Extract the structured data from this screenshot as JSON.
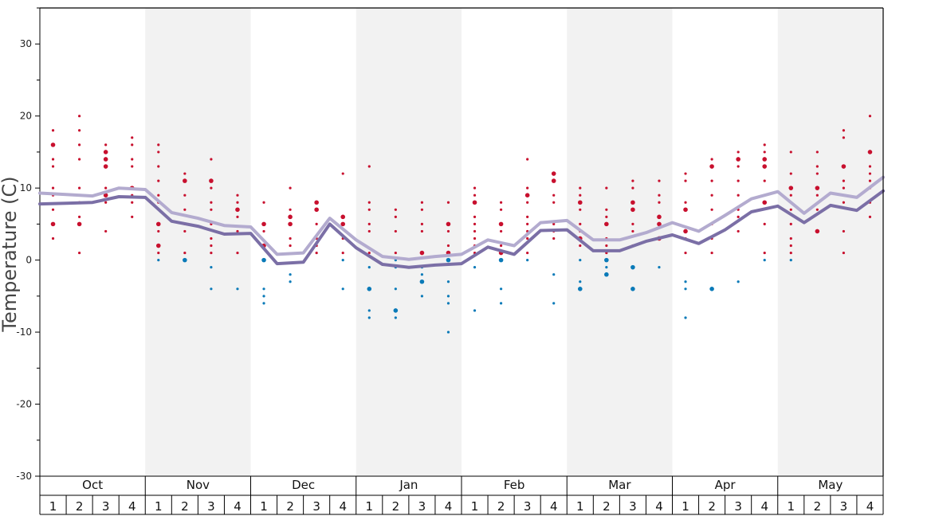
{
  "chart_data": {
    "type": "scatter",
    "title": "",
    "xlabel": "",
    "ylabel": "Temperature (C)",
    "ylim": [
      -30,
      35
    ],
    "y_ticks": [
      30,
      20,
      10,
      0,
      -10,
      -20,
      -30
    ],
    "y_tick_labels": [
      "30",
      "20",
      "10",
      "0",
      "-10",
      "-20",
      "-30"
    ],
    "grid": false,
    "months": [
      "Oct",
      "Nov",
      "Dec",
      "Jan",
      "Feb",
      "Mar",
      "Apr",
      "May"
    ],
    "weeks": [
      "1",
      "2",
      "3",
      "4"
    ],
    "colors": {
      "warm_point": "#c8102e",
      "cold_point": "#0a7ab8",
      "min_line": "#7b6fa6",
      "max_line": "#b3abcf",
      "band": "#f2f2f2"
    },
    "series": [
      {
        "role": "max_line",
        "values": [
          9.3,
          9.1,
          8.9,
          10.0,
          9.8,
          6.6,
          5.8,
          4.8,
          4.6,
          0.8,
          1.0,
          5.8,
          2.8,
          0.5,
          0.1,
          0.5,
          0.8,
          2.8,
          2.0,
          5.2,
          5.5,
          2.8,
          2.8,
          3.8,
          5.2,
          4.0,
          6.2,
          8.5,
          9.5,
          6.5,
          9.3,
          8.7,
          11.5
        ]
      },
      {
        "role": "min_line",
        "values": [
          7.8,
          7.9,
          8.0,
          8.8,
          8.7,
          5.4,
          4.7,
          3.6,
          3.7,
          -0.5,
          -0.3,
          5.0,
          1.7,
          -0.6,
          -1.0,
          -0.7,
          -0.5,
          1.8,
          0.8,
          4.1,
          4.2,
          1.3,
          1.3,
          2.6,
          3.5,
          2.3,
          4.2,
          6.7,
          7.5,
          5.2,
          7.6,
          6.9,
          9.6
        ]
      }
    ],
    "points": [
      [
        [
          18,
          1
        ],
        [
          16,
          2
        ],
        [
          14,
          1
        ],
        [
          13,
          1
        ],
        [
          10,
          1
        ],
        [
          9,
          1
        ],
        [
          7,
          1
        ],
        [
          5,
          2
        ],
        [
          3,
          1
        ]
      ],
      [
        [
          20,
          1
        ],
        [
          18,
          1
        ],
        [
          16,
          1
        ],
        [
          14,
          1
        ],
        [
          10,
          1
        ],
        [
          9,
          1
        ],
        [
          8,
          1
        ],
        [
          6,
          1
        ],
        [
          5,
          2
        ],
        [
          1,
          1
        ]
      ],
      [
        [
          16,
          1
        ],
        [
          15,
          2
        ],
        [
          14,
          2
        ],
        [
          13,
          2
        ],
        [
          10,
          1
        ],
        [
          9,
          2
        ],
        [
          8,
          1
        ],
        [
          4,
          1
        ]
      ],
      [
        [
          17,
          1
        ],
        [
          16,
          1
        ],
        [
          14,
          1
        ],
        [
          13,
          1
        ],
        [
          10,
          2
        ],
        [
          9,
          1
        ],
        [
          8,
          1
        ],
        [
          6,
          1
        ]
      ],
      [
        [
          16,
          1
        ],
        [
          15,
          1
        ],
        [
          13,
          1
        ],
        [
          11,
          1
        ],
        [
          9,
          1
        ],
        [
          8,
          1
        ],
        [
          5,
          2
        ],
        [
          4,
          1
        ],
        [
          2,
          2
        ],
        [
          1,
          1
        ],
        [
          0,
          1
        ]
      ],
      [
        [
          12,
          1
        ],
        [
          11,
          2
        ],
        [
          9,
          1
        ],
        [
          7,
          1
        ],
        [
          5,
          1
        ],
        [
          4,
          1
        ],
        [
          1,
          1
        ],
        [
          0,
          2
        ]
      ],
      [
        [
          14,
          1
        ],
        [
          11,
          2
        ],
        [
          10,
          1
        ],
        [
          8,
          1
        ],
        [
          7,
          1
        ],
        [
          5,
          1
        ],
        [
          3,
          1
        ],
        [
          2,
          1
        ],
        [
          1,
          1
        ],
        [
          -1,
          1
        ],
        [
          -4,
          1
        ]
      ],
      [
        [
          9,
          1
        ],
        [
          8,
          1
        ],
        [
          7,
          2
        ],
        [
          6,
          1
        ],
        [
          4,
          1
        ],
        [
          1,
          1
        ],
        [
          -4,
          1
        ]
      ],
      [
        [
          8,
          1
        ],
        [
          5,
          2
        ],
        [
          4,
          1
        ],
        [
          2,
          2
        ],
        [
          0,
          2
        ],
        [
          -4,
          1
        ],
        [
          -5,
          1
        ],
        [
          -6,
          1
        ]
      ],
      [
        [
          10,
          1
        ],
        [
          7,
          1
        ],
        [
          6,
          2
        ],
        [
          5,
          2
        ],
        [
          3,
          1
        ],
        [
          2,
          1
        ],
        [
          -2,
          1
        ],
        [
          -3,
          1
        ]
      ],
      [
        [
          8,
          2
        ],
        [
          7,
          2
        ],
        [
          5,
          1
        ],
        [
          3,
          1
        ],
        [
          2,
          1
        ],
        [
          1,
          1
        ]
      ],
      [
        [
          12,
          1
        ],
        [
          6,
          2
        ],
        [
          5,
          2
        ],
        [
          3,
          1
        ],
        [
          1,
          1
        ],
        [
          0,
          1
        ],
        [
          -4,
          1
        ]
      ],
      [
        [
          13,
          1
        ],
        [
          8,
          1
        ],
        [
          7,
          1
        ],
        [
          5,
          1
        ],
        [
          4,
          1
        ],
        [
          1,
          1
        ],
        [
          -1,
          1
        ],
        [
          -4,
          2
        ],
        [
          -7,
          1
        ],
        [
          -8,
          1
        ]
      ],
      [
        [
          7,
          1
        ],
        [
          6,
          1
        ],
        [
          4,
          1
        ],
        [
          1,
          1
        ],
        [
          0,
          1
        ],
        [
          -1,
          1
        ],
        [
          -4,
          1
        ],
        [
          -7,
          2
        ],
        [
          -8,
          1
        ]
      ],
      [
        [
          8,
          1
        ],
        [
          7,
          1
        ],
        [
          5,
          1
        ],
        [
          4,
          1
        ],
        [
          1,
          2
        ],
        [
          -1,
          1
        ],
        [
          -2,
          1
        ],
        [
          -3,
          2
        ],
        [
          -5,
          1
        ]
      ],
      [
        [
          8,
          1
        ],
        [
          5,
          2
        ],
        [
          4,
          1
        ],
        [
          2,
          1
        ],
        [
          1,
          2
        ],
        [
          0,
          2
        ],
        [
          -3,
          1
        ],
        [
          -5,
          1
        ],
        [
          -6,
          1
        ],
        [
          -10,
          1
        ]
      ],
      [
        [
          10,
          1
        ],
        [
          9,
          1
        ],
        [
          8,
          2
        ],
        [
          6,
          1
        ],
        [
          5,
          1
        ],
        [
          4,
          1
        ],
        [
          3,
          1
        ],
        [
          2,
          1
        ],
        [
          1,
          1
        ],
        [
          -1,
          1
        ],
        [
          -7,
          1
        ]
      ],
      [
        [
          8,
          1
        ],
        [
          7,
          1
        ],
        [
          5,
          2
        ],
        [
          4,
          1
        ],
        [
          2,
          1
        ],
        [
          1,
          2
        ],
        [
          0,
          2
        ],
        [
          -4,
          1
        ],
        [
          -6,
          1
        ]
      ],
      [
        [
          14,
          1
        ],
        [
          10,
          1
        ],
        [
          9,
          2
        ],
        [
          8,
          1
        ],
        [
          6,
          1
        ],
        [
          5,
          1
        ],
        [
          4,
          1
        ],
        [
          3,
          1
        ],
        [
          1,
          1
        ],
        [
          0,
          1
        ]
      ],
      [
        [
          12,
          2
        ],
        [
          11,
          2
        ],
        [
          9,
          1
        ],
        [
          8,
          1
        ],
        [
          5,
          1
        ],
        [
          4,
          1
        ],
        [
          3,
          1
        ],
        [
          -2,
          1
        ],
        [
          -6,
          1
        ]
      ],
      [
        [
          10,
          1
        ],
        [
          9,
          1
        ],
        [
          8,
          2
        ],
        [
          7,
          1
        ],
        [
          5,
          1
        ],
        [
          4,
          1
        ],
        [
          3,
          2
        ],
        [
          2,
          1
        ],
        [
          0,
          1
        ],
        [
          -3,
          1
        ],
        [
          -4,
          2
        ]
      ],
      [
        [
          10,
          1
        ],
        [
          7,
          1
        ],
        [
          6,
          1
        ],
        [
          5,
          2
        ],
        [
          3,
          1
        ],
        [
          2,
          1
        ],
        [
          1,
          1
        ],
        [
          0,
          2
        ],
        [
          -1,
          1
        ],
        [
          -2,
          2
        ]
      ],
      [
        [
          11,
          1
        ],
        [
          10,
          1
        ],
        [
          8,
          2
        ],
        [
          7,
          2
        ],
        [
          5,
          1
        ],
        [
          4,
          1
        ],
        [
          2,
          1
        ],
        [
          -1,
          2
        ],
        [
          -4,
          2
        ]
      ],
      [
        [
          11,
          1
        ],
        [
          9,
          1
        ],
        [
          8,
          1
        ],
        [
          6,
          2
        ],
        [
          5,
          2
        ],
        [
          3,
          2
        ],
        [
          -1,
          1
        ]
      ],
      [
        [
          12,
          1
        ],
        [
          11,
          1
        ],
        [
          8,
          1
        ],
        [
          7,
          2
        ],
        [
          4,
          2
        ],
        [
          3,
          1
        ],
        [
          1,
          1
        ],
        [
          -3,
          1
        ],
        [
          -4,
          1
        ],
        [
          -8,
          1
        ]
      ],
      [
        [
          14,
          1
        ],
        [
          13,
          2
        ],
        [
          11,
          1
        ],
        [
          9,
          1
        ],
        [
          7,
          1
        ],
        [
          5,
          1
        ],
        [
          3,
          1
        ],
        [
          1,
          1
        ],
        [
          -4,
          2
        ]
      ],
      [
        [
          15,
          1
        ],
        [
          14,
          2
        ],
        [
          13,
          1
        ],
        [
          11,
          1
        ],
        [
          9,
          1
        ],
        [
          7,
          1
        ],
        [
          6,
          1
        ],
        [
          4,
          1
        ],
        [
          -3,
          1
        ]
      ],
      [
        [
          16,
          1
        ],
        [
          15,
          1
        ],
        [
          14,
          2
        ],
        [
          13,
          2
        ],
        [
          11,
          1
        ],
        [
          9,
          1
        ],
        [
          8,
          2
        ],
        [
          5,
          1
        ],
        [
          1,
          1
        ],
        [
          0,
          1
        ]
      ],
      [
        [
          15,
          1
        ],
        [
          12,
          1
        ],
        [
          10,
          2
        ],
        [
          9,
          1
        ],
        [
          7,
          1
        ],
        [
          5,
          1
        ],
        [
          3,
          1
        ],
        [
          2,
          1
        ],
        [
          1,
          1
        ],
        [
          0,
          1
        ]
      ],
      [
        [
          15,
          1
        ],
        [
          13,
          1
        ],
        [
          12,
          1
        ],
        [
          10,
          2
        ],
        [
          9,
          1
        ],
        [
          7,
          1
        ],
        [
          4,
          2
        ]
      ],
      [
        [
          18,
          1
        ],
        [
          17,
          1
        ],
        [
          13,
          2
        ],
        [
          11,
          1
        ],
        [
          10,
          1
        ],
        [
          9,
          1
        ],
        [
          8,
          1
        ],
        [
          4,
          1
        ],
        [
          1,
          1
        ]
      ],
      [
        [
          20,
          1
        ],
        [
          15,
          2
        ],
        [
          13,
          1
        ],
        [
          12,
          1
        ],
        [
          11,
          1
        ],
        [
          10,
          1
        ],
        [
          8,
          1
        ],
        [
          6,
          1
        ]
      ]
    ]
  }
}
